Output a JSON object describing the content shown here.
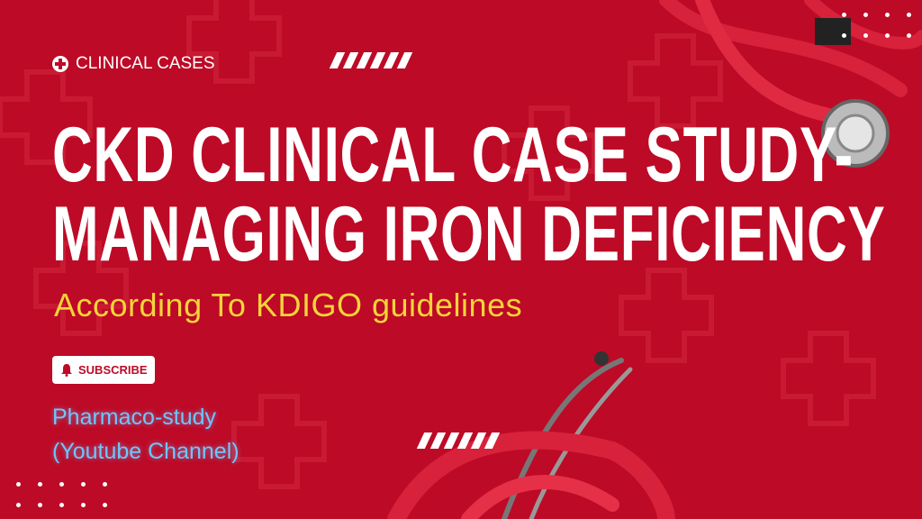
{
  "tag": {
    "icon": "medical-cross-icon",
    "label": "CLINICAL CASES"
  },
  "title": {
    "line1": "CKD CLINICAL CASE STUDY-",
    "line2": "MANAGING IRON DEFICIENCY"
  },
  "subtitle": "According To KDIGO guidelines",
  "subscribe": {
    "icon": "bell-icon",
    "label": "SUBSCRIBE"
  },
  "channel": {
    "line1": "Pharmaco-study",
    "line2": "(Youtube Channel)"
  },
  "colors": {
    "background": "#bd0a26",
    "subtitle": "#f5d33a",
    "channel": "#6ec6ff",
    "text": "#ffffff"
  }
}
